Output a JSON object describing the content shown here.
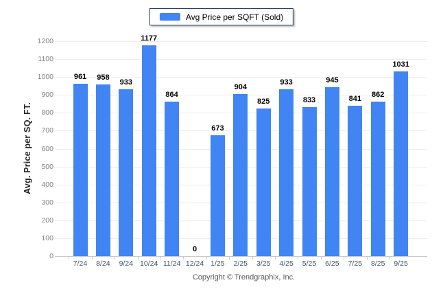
{
  "legend": {
    "label": "Avg Price per SQFT (Sold)"
  },
  "y_axis": {
    "title": "Avg. Price per SQ. FT."
  },
  "footer": {
    "copyright": "Copyright © Trendgraphix, Inc."
  },
  "colors": {
    "bar": "#4184F3",
    "gridline": "#EDEDED",
    "axis_line": "#C9C9C9",
    "x_label": "#44546A",
    "y_label": "#828282"
  },
  "chart_data": {
    "type": "bar",
    "title": "",
    "categories": [
      "7/24",
      "8/24",
      "9/24",
      "10/24",
      "11/24",
      "12/24",
      "1/25",
      "2/25",
      "3/25",
      "4/25",
      "5/25",
      "6/25",
      "7/25",
      "8/25",
      "9/25"
    ],
    "values": [
      961,
      958,
      933,
      1177,
      864,
      0,
      673,
      904,
      825,
      933,
      833,
      945,
      841,
      862,
      1031
    ],
    "series_name": "Avg Price per SQFT (Sold)",
    "xlabel": "",
    "ylabel": "Avg. Price per SQ. FT.",
    "ylim": [
      0,
      1200
    ],
    "ytick_step": 100,
    "grid": true,
    "legend_position": "top-center",
    "value_labels": true
  }
}
